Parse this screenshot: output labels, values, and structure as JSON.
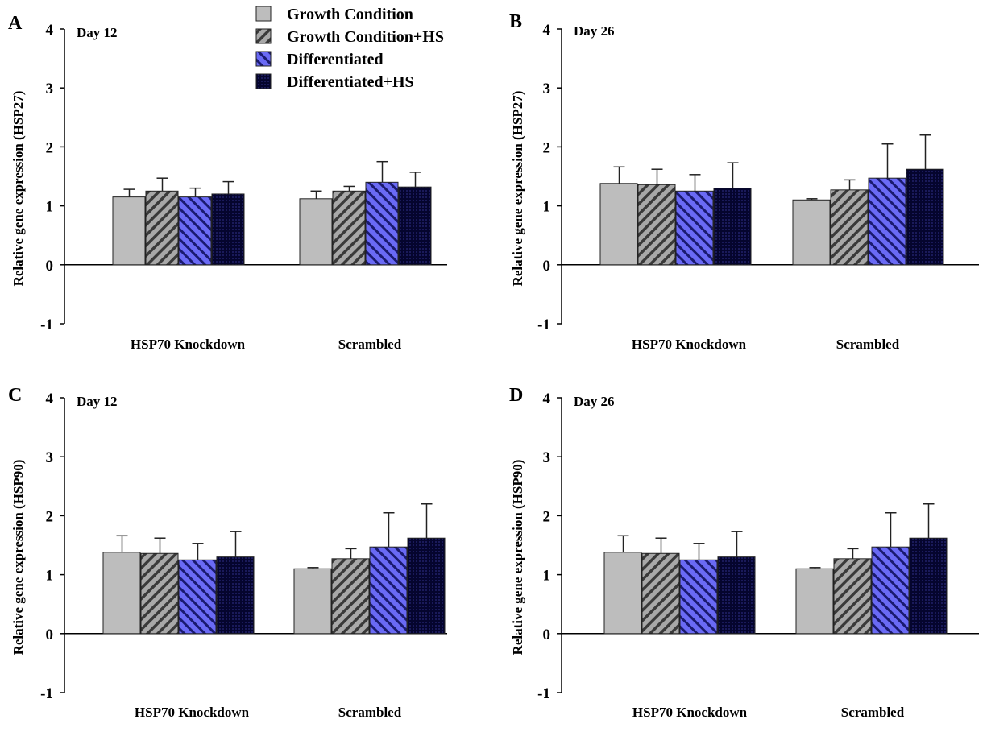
{
  "legend": [
    {
      "label": "Growth Condition",
      "pattern": "solid-gray",
      "color": "#bdbdbd"
    },
    {
      "label": "Growth Condition+HS",
      "pattern": "gray-hatch",
      "color": "#9a9a9a"
    },
    {
      "label": "Differentiated",
      "pattern": "blue-hatch",
      "color": "#5b5bf0"
    },
    {
      "label": "Differentiated+HS",
      "pattern": "navy-crosshatch",
      "color": "#0a0a40"
    }
  ],
  "chart_data": [
    {
      "panel": "A",
      "type": "bar",
      "day_label": "Day 12",
      "ylabel": "Relative gene expression (HSP27)",
      "ylim": [
        -1,
        4
      ],
      "yticks": [
        "-1",
        "0",
        "1",
        "2",
        "3",
        "4"
      ],
      "categories": [
        "HSP70 Knockdown",
        "Scrambled"
      ],
      "series": [
        {
          "name": "Growth Condition",
          "values": [
            1.15,
            1.12
          ],
          "errors": [
            0.13,
            0.13
          ]
        },
        {
          "name": "Growth Condition+HS",
          "values": [
            1.25,
            1.25
          ],
          "errors": [
            0.22,
            0.08
          ]
        },
        {
          "name": "Differentiated",
          "values": [
            1.15,
            1.4
          ],
          "errors": [
            0.15,
            0.35
          ]
        },
        {
          "name": "Differentiated+HS",
          "values": [
            1.2,
            1.32
          ],
          "errors": [
            0.21,
            0.25
          ]
        }
      ]
    },
    {
      "panel": "B",
      "type": "bar",
      "day_label": "Day 26",
      "ylabel": "Relative gene expression (HSP27)",
      "ylim": [
        -1,
        4
      ],
      "yticks": [
        "-1",
        "0",
        "1",
        "2",
        "3",
        "4"
      ],
      "categories": [
        "HSP70 Knockdown",
        "Scrambled"
      ],
      "series": [
        {
          "name": "Growth Condition",
          "values": [
            1.38,
            1.1
          ],
          "errors": [
            0.28,
            0.02
          ]
        },
        {
          "name": "Growth Condition+HS",
          "values": [
            1.36,
            1.27
          ],
          "errors": [
            0.26,
            0.17
          ]
        },
        {
          "name": "Differentiated",
          "values": [
            1.25,
            1.47
          ],
          "errors": [
            0.28,
            0.58
          ]
        },
        {
          "name": "Differentiated+HS",
          "values": [
            1.3,
            1.62
          ],
          "errors": [
            0.43,
            0.58
          ]
        }
      ]
    },
    {
      "panel": "C",
      "type": "bar",
      "day_label": "Day 12",
      "ylabel": "Relative gene expression (HSP90)",
      "ylim": [
        -1,
        4
      ],
      "yticks": [
        "-1",
        "0",
        "1",
        "2",
        "3",
        "4"
      ],
      "categories": [
        "HSP70 Knockdown",
        "Scrambled"
      ],
      "series": [
        {
          "name": "Growth Condition",
          "values": [
            1.38,
            1.1
          ],
          "errors": [
            0.28,
            0.02
          ]
        },
        {
          "name": "Growth Condition+HS",
          "values": [
            1.36,
            1.27
          ],
          "errors": [
            0.26,
            0.17
          ]
        },
        {
          "name": "Differentiated",
          "values": [
            1.25,
            1.47
          ],
          "errors": [
            0.28,
            0.58
          ]
        },
        {
          "name": "Differentiated+HS",
          "values": [
            1.3,
            1.62
          ],
          "errors": [
            0.43,
            0.58
          ]
        }
      ]
    },
    {
      "panel": "D",
      "type": "bar",
      "day_label": "Day 26",
      "ylabel": "Relative gene expression (HSP90)",
      "ylim": [
        -1,
        4
      ],
      "yticks": [
        "-1",
        "0",
        "1",
        "2",
        "3",
        "4"
      ],
      "categories": [
        "HSP70 Knockdown",
        "Scrambled"
      ],
      "series": [
        {
          "name": "Growth Condition",
          "values": [
            1.38,
            1.1
          ],
          "errors": [
            0.28,
            0.02
          ]
        },
        {
          "name": "Growth Condition+HS",
          "values": [
            1.36,
            1.27
          ],
          "errors": [
            0.26,
            0.17
          ]
        },
        {
          "name": "Differentiated",
          "values": [
            1.25,
            1.47
          ],
          "errors": [
            0.28,
            0.58
          ]
        },
        {
          "name": "Differentiated+HS",
          "values": [
            1.3,
            1.62
          ],
          "errors": [
            0.43,
            0.58
          ]
        }
      ]
    }
  ]
}
